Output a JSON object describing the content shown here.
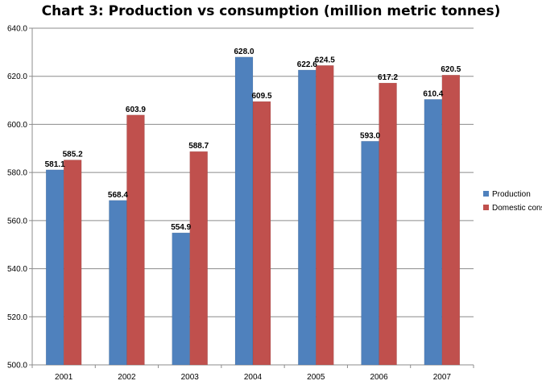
{
  "chart_data": {
    "type": "bar",
    "title": "Chart 3: Production vs consumption (million metric tonnes)",
    "categories": [
      "2001",
      "2002",
      "2003",
      "2004",
      "2005",
      "2006",
      "2007"
    ],
    "series": [
      {
        "name": "Production",
        "color": "#4f81bd",
        "values": [
          581.1,
          568.4,
          554.9,
          628.0,
          622.6,
          593.0,
          610.4
        ]
      },
      {
        "name": "Domestic cons.",
        "color": "#c0504d",
        "values": [
          585.2,
          603.9,
          588.7,
          609.5,
          624.5,
          617.2,
          620.5
        ]
      }
    ],
    "ylim": [
      500,
      640
    ],
    "yticks": [
      "500.0",
      "520.0",
      "540.0",
      "560.0",
      "580.0",
      "600.0",
      "620.0",
      "640.0"
    ],
    "grid": true,
    "legend": "right"
  }
}
